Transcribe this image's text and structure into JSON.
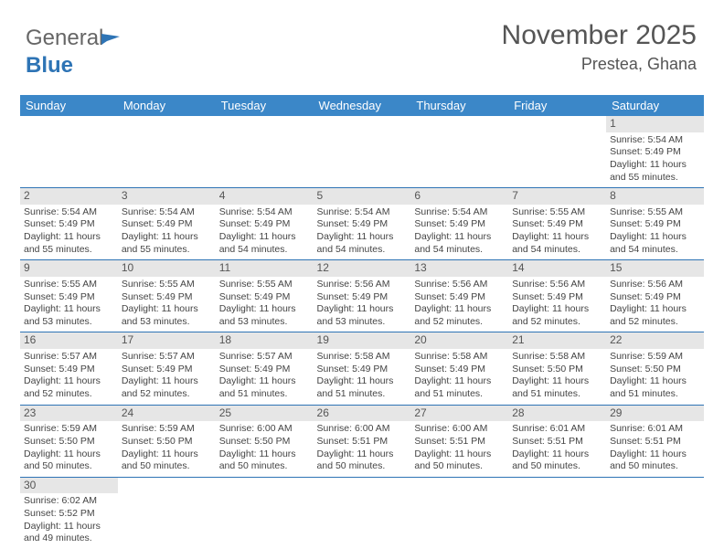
{
  "logo": {
    "general": "General",
    "blue": "Blue"
  },
  "header": {
    "title": "November 2025",
    "subtitle": "Prestea, Ghana"
  },
  "day_headers": [
    "Sunday",
    "Monday",
    "Tuesday",
    "Wednesday",
    "Thursday",
    "Friday",
    "Saturday"
  ],
  "weeks": [
    [
      null,
      null,
      null,
      null,
      null,
      null,
      {
        "n": "1",
        "sr": "5:54 AM",
        "ss": "5:49 PM",
        "dl": "11 hours and 55 minutes."
      }
    ],
    [
      {
        "n": "2",
        "sr": "5:54 AM",
        "ss": "5:49 PM",
        "dl": "11 hours and 55 minutes."
      },
      {
        "n": "3",
        "sr": "5:54 AM",
        "ss": "5:49 PM",
        "dl": "11 hours and 55 minutes."
      },
      {
        "n": "4",
        "sr": "5:54 AM",
        "ss": "5:49 PM",
        "dl": "11 hours and 54 minutes."
      },
      {
        "n": "5",
        "sr": "5:54 AM",
        "ss": "5:49 PM",
        "dl": "11 hours and 54 minutes."
      },
      {
        "n": "6",
        "sr": "5:54 AM",
        "ss": "5:49 PM",
        "dl": "11 hours and 54 minutes."
      },
      {
        "n": "7",
        "sr": "5:55 AM",
        "ss": "5:49 PM",
        "dl": "11 hours and 54 minutes."
      },
      {
        "n": "8",
        "sr": "5:55 AM",
        "ss": "5:49 PM",
        "dl": "11 hours and 54 minutes."
      }
    ],
    [
      {
        "n": "9",
        "sr": "5:55 AM",
        "ss": "5:49 PM",
        "dl": "11 hours and 53 minutes."
      },
      {
        "n": "10",
        "sr": "5:55 AM",
        "ss": "5:49 PM",
        "dl": "11 hours and 53 minutes."
      },
      {
        "n": "11",
        "sr": "5:55 AM",
        "ss": "5:49 PM",
        "dl": "11 hours and 53 minutes."
      },
      {
        "n": "12",
        "sr": "5:56 AM",
        "ss": "5:49 PM",
        "dl": "11 hours and 53 minutes."
      },
      {
        "n": "13",
        "sr": "5:56 AM",
        "ss": "5:49 PM",
        "dl": "11 hours and 52 minutes."
      },
      {
        "n": "14",
        "sr": "5:56 AM",
        "ss": "5:49 PM",
        "dl": "11 hours and 52 minutes."
      },
      {
        "n": "15",
        "sr": "5:56 AM",
        "ss": "5:49 PM",
        "dl": "11 hours and 52 minutes."
      }
    ],
    [
      {
        "n": "16",
        "sr": "5:57 AM",
        "ss": "5:49 PM",
        "dl": "11 hours and 52 minutes."
      },
      {
        "n": "17",
        "sr": "5:57 AM",
        "ss": "5:49 PM",
        "dl": "11 hours and 52 minutes."
      },
      {
        "n": "18",
        "sr": "5:57 AM",
        "ss": "5:49 PM",
        "dl": "11 hours and 51 minutes."
      },
      {
        "n": "19",
        "sr": "5:58 AM",
        "ss": "5:49 PM",
        "dl": "11 hours and 51 minutes."
      },
      {
        "n": "20",
        "sr": "5:58 AM",
        "ss": "5:49 PM",
        "dl": "11 hours and 51 minutes."
      },
      {
        "n": "21",
        "sr": "5:58 AM",
        "ss": "5:50 PM",
        "dl": "11 hours and 51 minutes."
      },
      {
        "n": "22",
        "sr": "5:59 AM",
        "ss": "5:50 PM",
        "dl": "11 hours and 51 minutes."
      }
    ],
    [
      {
        "n": "23",
        "sr": "5:59 AM",
        "ss": "5:50 PM",
        "dl": "11 hours and 50 minutes."
      },
      {
        "n": "24",
        "sr": "5:59 AM",
        "ss": "5:50 PM",
        "dl": "11 hours and 50 minutes."
      },
      {
        "n": "25",
        "sr": "6:00 AM",
        "ss": "5:50 PM",
        "dl": "11 hours and 50 minutes."
      },
      {
        "n": "26",
        "sr": "6:00 AM",
        "ss": "5:51 PM",
        "dl": "11 hours and 50 minutes."
      },
      {
        "n": "27",
        "sr": "6:00 AM",
        "ss": "5:51 PM",
        "dl": "11 hours and 50 minutes."
      },
      {
        "n": "28",
        "sr": "6:01 AM",
        "ss": "5:51 PM",
        "dl": "11 hours and 50 minutes."
      },
      {
        "n": "29",
        "sr": "6:01 AM",
        "ss": "5:51 PM",
        "dl": "11 hours and 50 minutes."
      }
    ],
    [
      {
        "n": "30",
        "sr": "6:02 AM",
        "ss": "5:52 PM",
        "dl": "11 hours and 49 minutes."
      },
      null,
      null,
      null,
      null,
      null,
      null
    ]
  ],
  "labels": {
    "sunrise": "Sunrise: ",
    "sunset": "Sunset: ",
    "daylight": "Daylight: "
  },
  "colors": {
    "header_bg": "#3b87c8",
    "header_fg": "#ffffff",
    "daynum_bg": "#e6e6e6",
    "row_border": "#2e74b5",
    "text": "#444444",
    "title": "#555555"
  }
}
